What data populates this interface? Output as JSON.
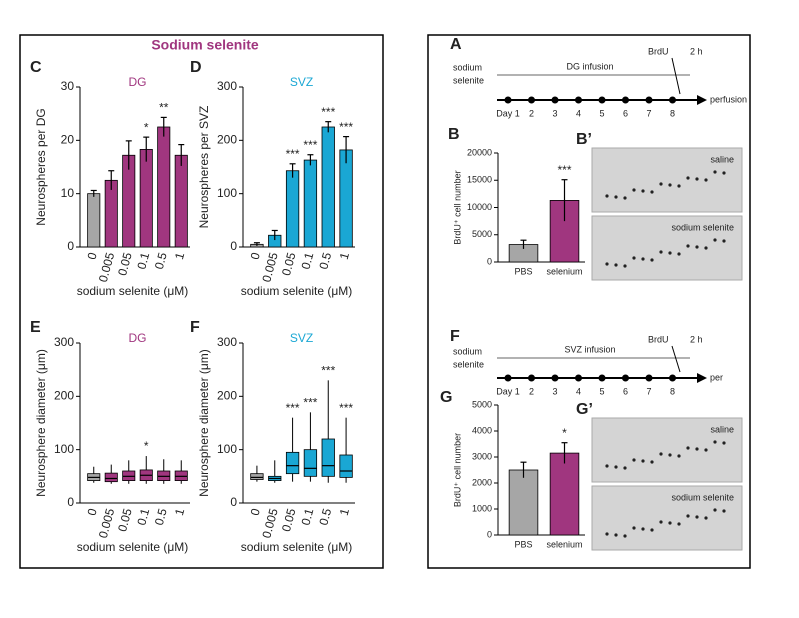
{
  "figure_title": "Sodium selenite",
  "chart_data": [
    {
      "type": "bar",
      "panel": "C",
      "title": "DG",
      "title_color": "#a0367f",
      "ylabel": "Neurospheres per DG",
      "xlabel": "sodium selenite (μM)",
      "categories": [
        "0",
        "0.005",
        "0.05",
        "0.1",
        "0.5",
        "1"
      ],
      "values": [
        10,
        12.5,
        17.2,
        18.3,
        22.5,
        17.2
      ],
      "errors": [
        0.6,
        1.8,
        2.7,
        2.3,
        1.8,
        2
      ],
      "colors": [
        "#a6a6a6",
        "#a0367f",
        "#a0367f",
        "#a0367f",
        "#a0367f",
        "#a0367f"
      ],
      "annotations": [
        null,
        null,
        null,
        "*",
        "**",
        null
      ],
      "ylim": [
        0,
        30
      ],
      "yticks": [
        0,
        10,
        20,
        30
      ]
    },
    {
      "type": "bar",
      "panel": "D",
      "title": "SVZ",
      "title_color": "#1aa7d4",
      "ylabel": "Neurospheres per SVZ",
      "xlabel": "sodium selenite (μM)",
      "categories": [
        "0",
        "0.005",
        "0.05",
        "0.1",
        "0.5",
        "1"
      ],
      "values": [
        5,
        22,
        143,
        163,
        225,
        182
      ],
      "errors": [
        3,
        9,
        13,
        10,
        10,
        25
      ],
      "colors": [
        "#a6a6a6",
        "#1aa7d4",
        "#1aa7d4",
        "#1aa7d4",
        "#1aa7d4",
        "#1aa7d4"
      ],
      "annotations": [
        null,
        null,
        "***",
        "***",
        "***",
        "***"
      ],
      "ylim": [
        0,
        300
      ],
      "yticks": [
        0,
        100,
        200,
        300
      ]
    },
    {
      "type": "box",
      "panel": "E",
      "title": "DG",
      "title_color": "#a0367f",
      "ylabel": "Neurosphere diameter (μm)",
      "xlabel": "sodium selenite (μM)",
      "categories": [
        "0",
        "0.005",
        "0.05",
        "0.1",
        "0.5",
        "1"
      ],
      "boxes": [
        {
          "min": 38,
          "q1": 42,
          "median": 48,
          "q3": 55,
          "max": 68
        },
        {
          "min": 36,
          "q1": 40,
          "median": 46,
          "q3": 56,
          "max": 72
        },
        {
          "min": 36,
          "q1": 42,
          "median": 50,
          "q3": 60,
          "max": 80
        },
        {
          "min": 36,
          "q1": 42,
          "median": 52,
          "q3": 62,
          "max": 88
        },
        {
          "min": 36,
          "q1": 42,
          "median": 50,
          "q3": 60,
          "max": 82
        },
        {
          "min": 36,
          "q1": 42,
          "median": 50,
          "q3": 60,
          "max": 80
        }
      ],
      "colors": [
        "#a6a6a6",
        "#a0367f",
        "#a0367f",
        "#a0367f",
        "#a0367f",
        "#a0367f"
      ],
      "annotations": [
        null,
        null,
        null,
        "*",
        null,
        null
      ],
      "ylim": [
        0,
        300
      ],
      "yticks": [
        0,
        100,
        200,
        300
      ]
    },
    {
      "type": "box",
      "panel": "F",
      "title": "SVZ",
      "title_color": "#1aa7d4",
      "ylabel": "Neurosphere diameter (μm)",
      "xlabel": "sodium selenite (μM)",
      "categories": [
        "0",
        "0.005",
        "0.05",
        "0.1",
        "0.5",
        "1"
      ],
      "boxes": [
        {
          "min": 40,
          "q1": 44,
          "median": 48,
          "q3": 55,
          "max": 70
        },
        {
          "min": 38,
          "q1": 42,
          "median": 46,
          "q3": 50,
          "max": 80
        },
        {
          "min": 40,
          "q1": 55,
          "median": 70,
          "q3": 95,
          "max": 160
        },
        {
          "min": 40,
          "q1": 50,
          "median": 65,
          "q3": 100,
          "max": 170
        },
        {
          "min": 38,
          "q1": 50,
          "median": 70,
          "q3": 120,
          "max": 230
        },
        {
          "min": 38,
          "q1": 48,
          "median": 60,
          "q3": 90,
          "max": 160
        }
      ],
      "colors": [
        "#a6a6a6",
        "#1aa7d4",
        "#1aa7d4",
        "#1aa7d4",
        "#1aa7d4",
        "#1aa7d4"
      ],
      "annotations": [
        null,
        null,
        "***",
        "***",
        "***",
        "***"
      ],
      "ylim": [
        0,
        300
      ],
      "yticks": [
        0,
        100,
        200,
        300
      ]
    },
    {
      "type": "bar",
      "panel": "B",
      "ylabel": "BrdU⁺ cell number",
      "categories": [
        "PBS",
        "selenium"
      ],
      "values": [
        3200,
        11300
      ],
      "errors": [
        800,
        3800
      ],
      "colors": [
        "#a6a6a6",
        "#a0367f"
      ],
      "annotations": [
        null,
        "***"
      ],
      "ylim": [
        0,
        20000
      ],
      "yticks": [
        0,
        5000,
        10000,
        15000,
        20000
      ]
    },
    {
      "type": "bar",
      "panel": "G",
      "ylabel": "BrdU⁺ cell number",
      "categories": [
        "PBS",
        "selenium"
      ],
      "values": [
        2500,
        3150
      ],
      "errors": [
        300,
        400
      ],
      "colors": [
        "#a6a6a6",
        "#a0367f"
      ],
      "annotations": [
        null,
        "*"
      ],
      "ylim": [
        0,
        5000
      ],
      "yticks": [
        0,
        1000,
        2000,
        3000,
        4000,
        5000
      ]
    }
  ],
  "timelines": [
    {
      "panel": "A",
      "treatment": [
        "sodium",
        "selenite"
      ],
      "infusion": "DG infusion",
      "marker": "BrdU",
      "interval": "2 h",
      "days": [
        "Day 1",
        "2",
        "3",
        "4",
        "5",
        "6",
        "7",
        "8"
      ],
      "end": "perfusion"
    },
    {
      "panel": "F",
      "treatment": [
        "sodium",
        "selenite"
      ],
      "infusion": "SVZ infusion",
      "marker": "BrdU",
      "interval": "2 h",
      "days": [
        "Day 1",
        "2",
        "3",
        "4",
        "5",
        "6",
        "7",
        "8"
      ],
      "end": "per"
    }
  ],
  "images": [
    {
      "panel": "B’",
      "labels": [
        "saline",
        "sodium selenite"
      ]
    },
    {
      "panel": "G’",
      "labels": [
        "saline",
        "sodium selenite"
      ]
    }
  ]
}
